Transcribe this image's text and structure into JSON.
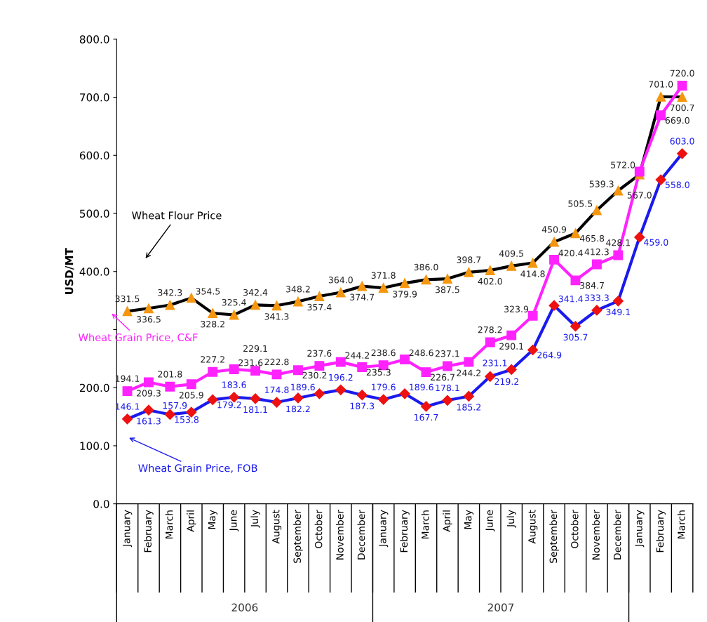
{
  "chart_data": {
    "type": "line",
    "ylabel": "USD/MT",
    "categories": [
      "January",
      "February",
      "March",
      "April",
      "May",
      "June",
      "July",
      "August",
      "September",
      "October",
      "November",
      "December",
      "January",
      "February",
      "March",
      "April",
      "May",
      "June",
      "July",
      "August",
      "September",
      "October",
      "November",
      "December",
      "January",
      "February",
      "March"
    ],
    "annotations": [
      "2006",
      "2007"
    ],
    "ylim": [
      0,
      800
    ],
    "yticks": [
      {
        "value": 0,
        "label": "0.0"
      },
      {
        "value": 100,
        "label": "100.0"
      },
      {
        "value": 200,
        "label": "200.0"
      },
      {
        "value": 300,
        "label": null
      },
      {
        "value": 400,
        "label": "400.0"
      },
      {
        "value": 500,
        "label": "500.0"
      },
      {
        "value": 600,
        "label": "600.0"
      },
      {
        "value": 700,
        "label": "700.0"
      },
      {
        "value": 800,
        "label": "800.0"
      }
    ],
    "grid": false,
    "legend": "left",
    "series": [
      {
        "name": "Wheat Flour Price",
        "color": "#000000",
        "marker": "triangle",
        "colors": [
          "#f5960f",
          "#f5960f",
          "#f5960f",
          "#f5960f",
          "#f5960f",
          "#f5960f",
          "#f5960f",
          "#f5960f",
          "#f5960f",
          "#f5960f",
          "#f5960f",
          "#f5960f",
          "#f5960f",
          "#f5960f",
          "#f5960f",
          "#f5960f",
          "#f5960f",
          "#f5960f",
          "#f5960f",
          "#f5960f",
          "#f5960f",
          "#f5960f",
          "#f5960f",
          "#f5960f",
          "#f5960f",
          "#f5960f",
          "#f5960f"
        ],
        "values": [
          331.5,
          336.5,
          342.3,
          354.5,
          328.2,
          325.4,
          342.4,
          341.3,
          348.2,
          357.4,
          364.0,
          374.7,
          371.8,
          379.9,
          386.0,
          387.5,
          398.7,
          402.0,
          409.5,
          414.8,
          450.9,
          465.8,
          505.5,
          539.3,
          567.0,
          701.0,
          700.7
        ],
        "value_labels": [
          "331.5",
          "336.5",
          "342.3",
          "354.5",
          "328.2",
          "325.4",
          "342.4",
          "341.3",
          "348.2",
          "357.4",
          "364.0",
          "374.7",
          "371.8",
          "379.9",
          "386.0",
          "387.5",
          "398.7",
          "402.0",
          "409.5",
          "414.8",
          "450.9",
          "465.8",
          "505.5",
          "539.3",
          "567.0",
          "701.0",
          "700.7"
        ]
      },
      {
        "name": "Wheat Grain Price, C&F",
        "color": "#ff22ff",
        "marker": "square",
        "values": [
          194.1,
          209.3,
          201.8,
          205.9,
          227.2,
          231.6,
          229.1,
          222.8,
          230.2,
          237.6,
          244.2,
          235.3,
          238.6,
          248.6,
          226.7,
          237.1,
          244.2,
          278.2,
          290.1,
          323.9,
          420.4,
          384.7,
          412.3,
          428.1,
          572.0,
          669.0,
          720.0
        ],
        "value_labels": [
          "194.1",
          "209.3",
          "201.8",
          "205.9",
          "227.2",
          "231.6",
          "229.1",
          "222.8",
          "230.2",
          "237.6",
          "244.2",
          "235.3",
          "238.6",
          "248.6",
          "226.7",
          "237.1",
          "244.2",
          "278.2",
          "290.1",
          "323.9",
          "420.4",
          "384.7",
          "412.3",
          "428.1",
          "572.0",
          "669.0",
          "720.0"
        ]
      },
      {
        "name": "Wheat Grain Price, FOB",
        "color": "#1a1aee",
        "marker": "diamond",
        "colors": [
          "#ee1111",
          "#ee1111",
          "#ee1111",
          "#ee1111",
          "#ee1111",
          "#ee1111",
          "#ee1111",
          "#ee1111",
          "#ee1111",
          "#ee1111",
          "#ee1111",
          "#ee1111",
          "#ee1111",
          "#ee1111",
          "#ee1111",
          "#ee1111",
          "#ee1111",
          "#ee1111",
          "#ee1111",
          "#ee1111",
          "#ee1111",
          "#ee1111",
          "#ee1111",
          "#ee1111",
          "#ee1111",
          "#ee1111",
          "#ee1111"
        ],
        "values": [
          146.1,
          161.3,
          153.8,
          157.9,
          179.2,
          183.6,
          181.1,
          174.8,
          182.2,
          189.6,
          196.2,
          187.3,
          179.6,
          189.6,
          167.7,
          178.1,
          185.2,
          219.2,
          231.1,
          264.9,
          341.4,
          305.7,
          333.3,
          349.1,
          459.0,
          558.0,
          603.0
        ],
        "value_labels": [
          "146.1",
          "161.3",
          "153.8",
          "157.9",
          "179.2",
          "183.6",
          "181.1",
          "174.8",
          "182.2",
          "189.6",
          "196.2",
          "187.3",
          "179.6",
          "189.6",
          "167.7",
          "178.1",
          "185.2",
          "219.2",
          "231.1",
          "264.9",
          "341.4",
          "305.7",
          "333.3",
          "349.1",
          "459.0",
          "558.0",
          "603.0"
        ]
      }
    ]
  }
}
